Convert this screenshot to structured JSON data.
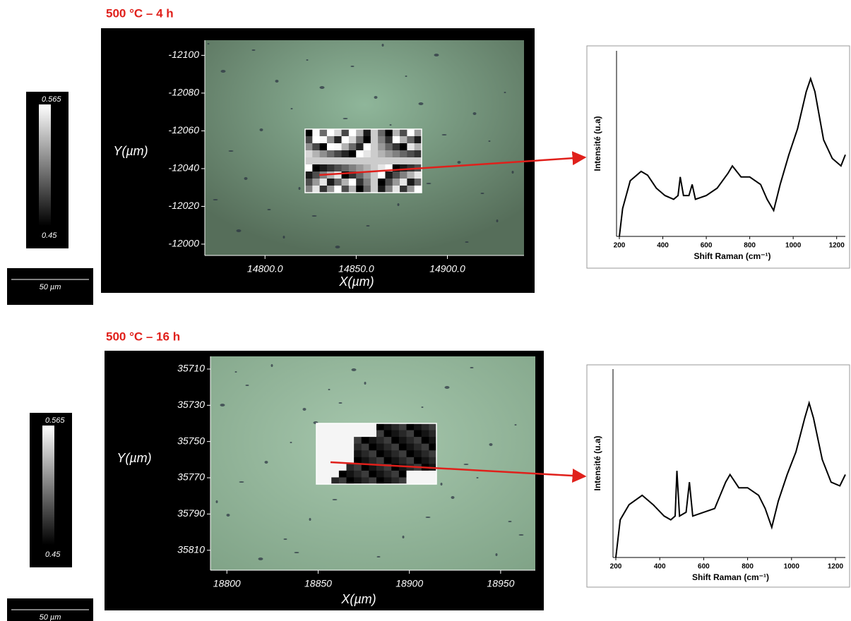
{
  "panels": [
    {
      "title": "500 °C – 4 h",
      "colorbar": {
        "max": "0.565",
        "min": "0.45"
      },
      "scale_bar": "50 µm",
      "map": {
        "x_label": "X(µm)",
        "y_label": "Y(µm)",
        "xlim": [
          14767,
          14942
        ],
        "xticks": [
          {
            "value": 14800,
            "label": "14800.0"
          },
          {
            "value": 14850,
            "label": "14850.0"
          },
          {
            "value": 14900,
            "label": "14900.0"
          }
        ],
        "ylim": [
          -12108,
          -11994
        ],
        "y_inverted": true,
        "yticks": [
          -12100,
          -12080,
          -12060,
          -12040,
          -12020,
          -12000
        ]
      },
      "spectrum": {
        "type": "line",
        "x_label": "Shift Raman (cm⁻¹)",
        "y_label": "Intensité (u.a)",
        "color": "#000000",
        "xlim": [
          200,
          1240
        ],
        "xticks": [
          200,
          400,
          600,
          800,
          1000,
          1200
        ],
        "ylim": [
          0,
          100
        ],
        "x": [
          200,
          215,
          250,
          300,
          330,
          370,
          410,
          450,
          470,
          480,
          495,
          520,
          535,
          550,
          600,
          650,
          700,
          720,
          760,
          800,
          850,
          880,
          910,
          940,
          980,
          1020,
          1060,
          1080,
          1100,
          1140,
          1180,
          1220,
          1240
        ],
        "values": [
          0,
          15,
          30,
          35,
          33,
          26,
          22,
          20,
          22,
          32,
          22,
          22,
          28,
          20,
          22,
          26,
          34,
          38,
          32,
          32,
          28,
          20,
          14,
          28,
          44,
          58,
          78,
          85,
          78,
          52,
          42,
          38,
          44
        ]
      }
    },
    {
      "title": "500 °C – 16 h",
      "colorbar": {
        "max": "0.565",
        "min": "0.45"
      },
      "scale_bar": "50 µm",
      "map": {
        "x_label": "X(µm)",
        "y_label": "Y(µm)",
        "xlim": [
          18791,
          18969
        ],
        "xticks": [
          18800,
          18850,
          18900,
          18950
        ],
        "ylim": [
          35703,
          35821
        ],
        "y_inverted": true,
        "yticks": [
          35710,
          35730,
          35750,
          35770,
          35790,
          35810
        ]
      },
      "spectrum": {
        "type": "line",
        "x_label": "Shift Raman (cm⁻¹)",
        "y_label": "Intensité (u.a)",
        "color": "#000000",
        "xlim": [
          200,
          1245
        ],
        "xticks": [
          200,
          400,
          600,
          800,
          1000,
          1200
        ],
        "ylim": [
          0,
          100
        ],
        "x": [
          200,
          220,
          260,
          320,
          370,
          420,
          450,
          470,
          478,
          490,
          520,
          535,
          550,
          600,
          650,
          700,
          720,
          760,
          800,
          850,
          880,
          910,
          940,
          980,
          1020,
          1060,
          1080,
          1100,
          1140,
          1180,
          1220,
          1245
        ],
        "values": [
          0,
          20,
          28,
          33,
          28,
          22,
          20,
          22,
          46,
          22,
          24,
          40,
          22,
          24,
          26,
          40,
          44,
          37,
          37,
          33,
          26,
          16,
          30,
          44,
          56,
          74,
          82,
          74,
          52,
          40,
          38,
          44
        ]
      }
    }
  ]
}
